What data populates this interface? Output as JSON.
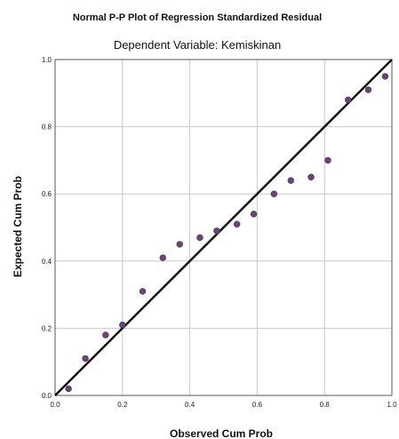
{
  "chart_data": {
    "type": "scatter",
    "title": "Normal P-P Plot of Regression Standardized Residual",
    "subtitle": "Dependent Variable: Kemiskinan",
    "xlabel": "Observed Cum Prob",
    "ylabel": "Expected Cum Prob",
    "xlim": [
      0,
      1
    ],
    "ylim": [
      0,
      1
    ],
    "x_ticks": [
      "0.0",
      "0.2",
      "0.4",
      "0.6",
      "0.8",
      "1.0"
    ],
    "y_ticks": [
      "0.0",
      "0.2",
      "0.4",
      "0.6",
      "0.8",
      "1.0"
    ],
    "grid": true,
    "reference_line": {
      "from": [
        0,
        0
      ],
      "to": [
        1,
        1
      ]
    },
    "point_color": "#6b4577",
    "line_color": "#111111",
    "x": [
      0.04,
      0.09,
      0.15,
      0.2,
      0.26,
      0.32,
      0.37,
      0.43,
      0.48,
      0.54,
      0.59,
      0.65,
      0.7,
      0.76,
      0.81,
      0.87,
      0.93,
      0.98
    ],
    "y": [
      0.02,
      0.11,
      0.18,
      0.21,
      0.31,
      0.41,
      0.45,
      0.47,
      0.49,
      0.51,
      0.54,
      0.6,
      0.64,
      0.65,
      0.7,
      0.88,
      0.91,
      0.95
    ]
  }
}
